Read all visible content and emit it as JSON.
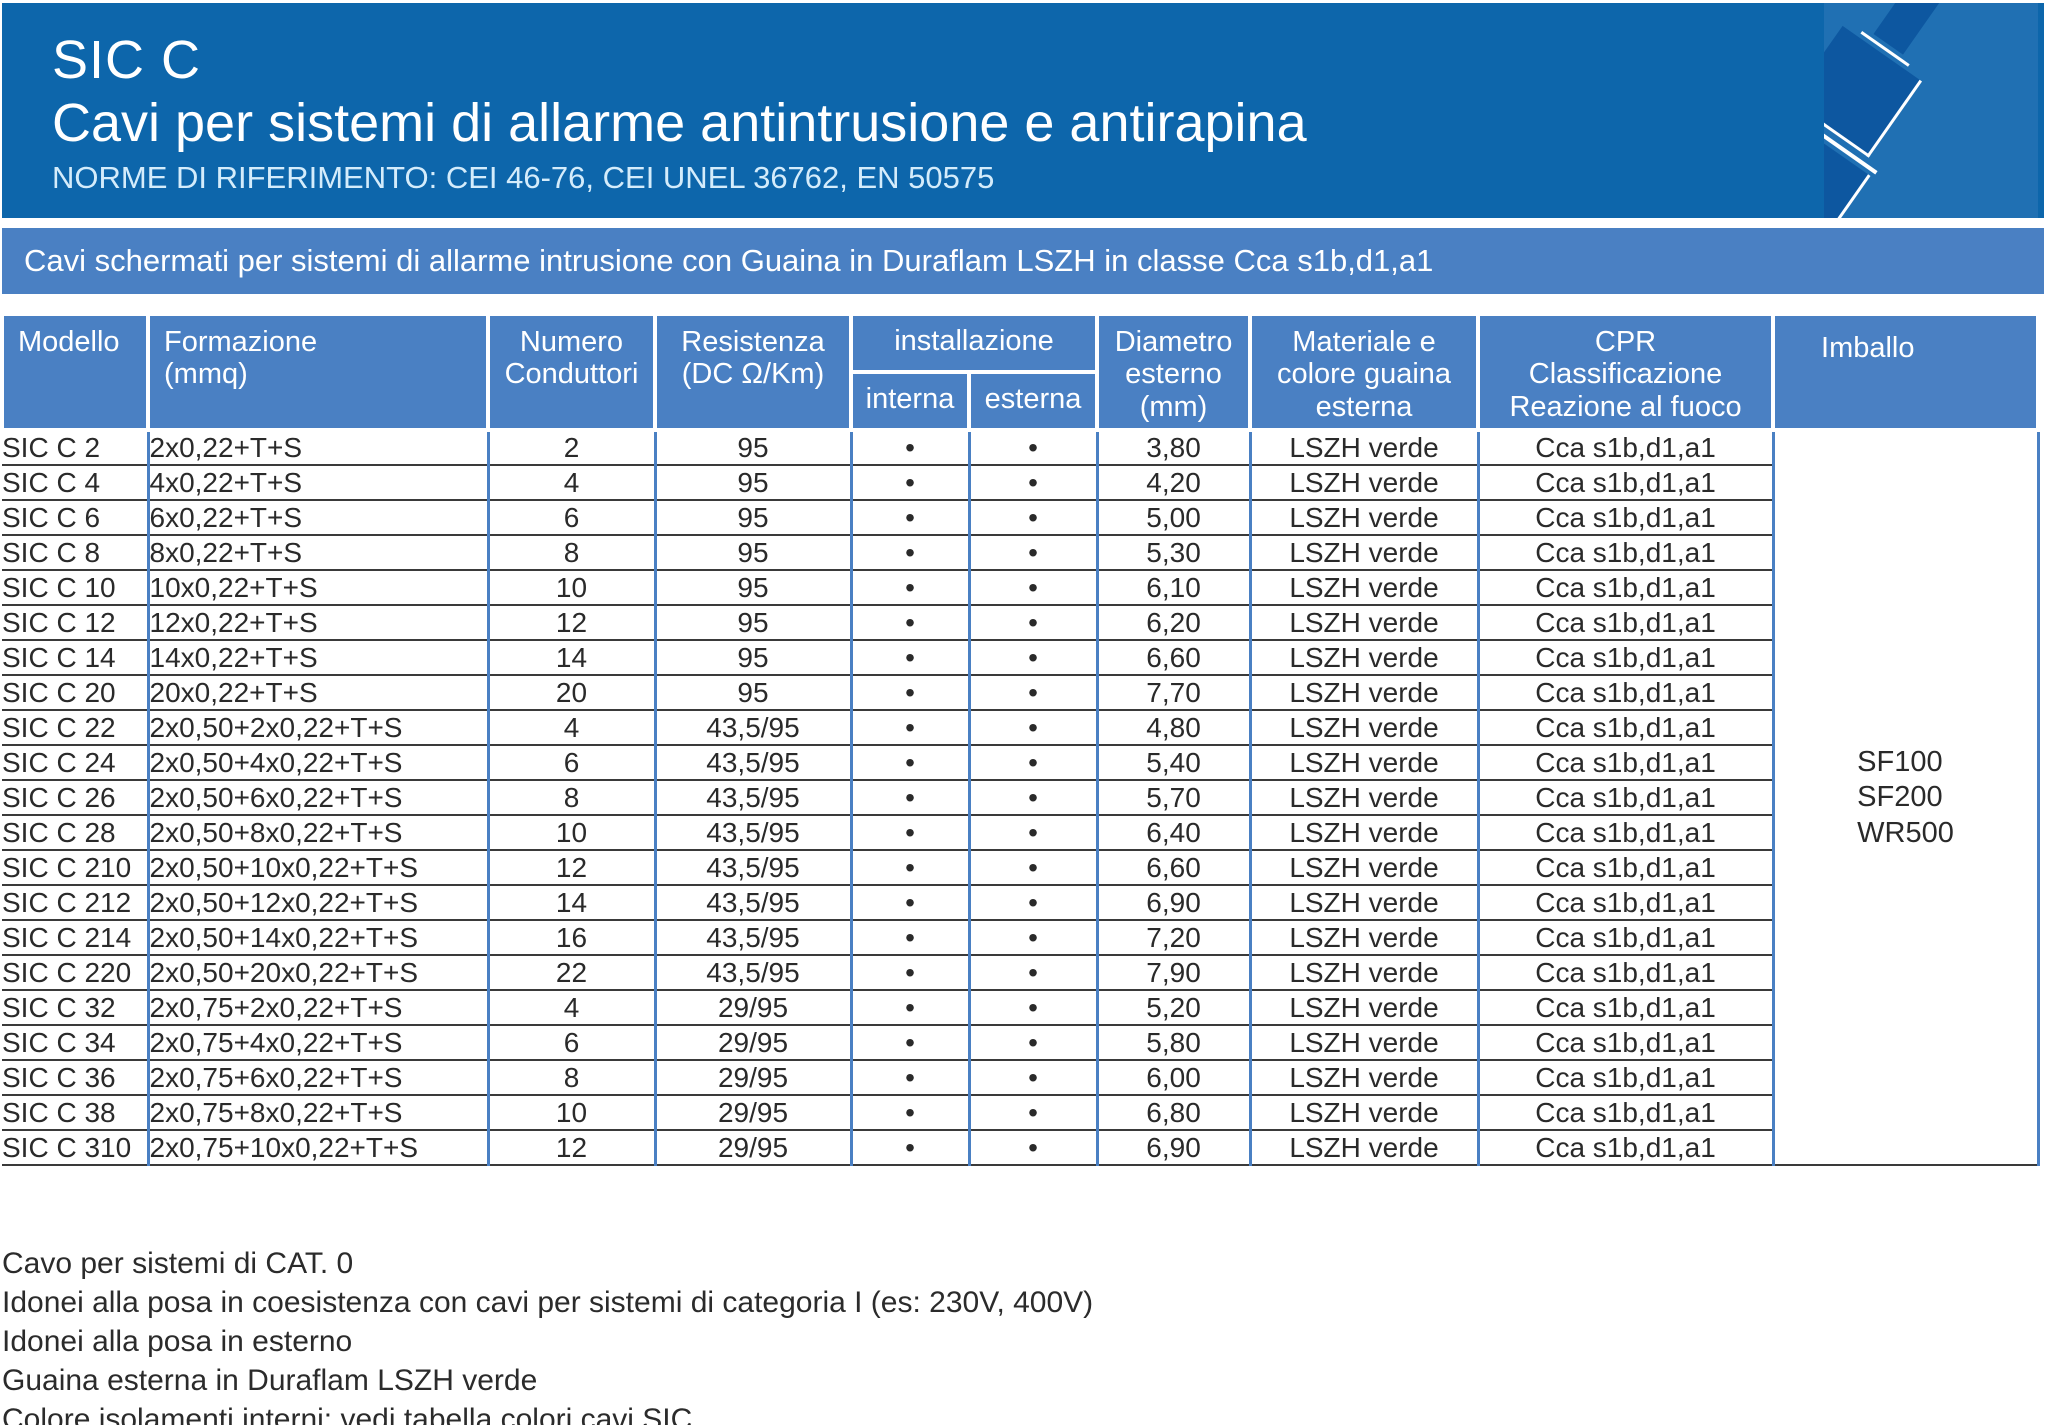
{
  "header": {
    "product_code": "SIC C",
    "title": "Cavi per sistemi di allarme antintrusione e antirapina",
    "norms": "NORME DI RIFERIMENTO: CEI 46-76, CEI UNEL 36762, EN 50575"
  },
  "banner": "Cavi schermati per sistemi di allarme intrusione con Guaina in Duraflam LSZH in classe Cca s1b,d1,a1",
  "table": {
    "headers": {
      "modello": "Modello",
      "formazione": "Formazione\n(mmq)",
      "numero": "Numero\nConduttori",
      "resistenza": "Resistenza\n(DC Ω/Km)",
      "installazione": "installazione",
      "interna": "interna",
      "esterna": "esterna",
      "diametro": "Diametro\nesterno\n(mm)",
      "materiale": "Materiale e\ncolore guaina\nesterna",
      "cpr": "CPR\nClassificazione\nReazione al fuoco",
      "imballo": "Imballo"
    },
    "rows": [
      {
        "model": "SIC C 2",
        "formation": "2x0,22+T+S",
        "conductors": "2",
        "resistance": "95",
        "interna": "•",
        "esterna": "•",
        "diameter": "3,80",
        "material": "LSZH verde",
        "cpr": "Cca s1b,d1,a1"
      },
      {
        "model": "SIC C 4",
        "formation": "4x0,22+T+S",
        "conductors": "4",
        "resistance": "95",
        "interna": "•",
        "esterna": "•",
        "diameter": "4,20",
        "material": "LSZH verde",
        "cpr": "Cca s1b,d1,a1"
      },
      {
        "model": "SIC C 6",
        "formation": "6x0,22+T+S",
        "conductors": "6",
        "resistance": "95",
        "interna": "•",
        "esterna": "•",
        "diameter": "5,00",
        "material": "LSZH verde",
        "cpr": "Cca s1b,d1,a1"
      },
      {
        "model": "SIC C 8",
        "formation": "8x0,22+T+S",
        "conductors": "8",
        "resistance": "95",
        "interna": "•",
        "esterna": "•",
        "diameter": "5,30",
        "material": "LSZH verde",
        "cpr": "Cca s1b,d1,a1"
      },
      {
        "model": "SIC C 10",
        "formation": "10x0,22+T+S",
        "conductors": "10",
        "resistance": "95",
        "interna": "•",
        "esterna": "•",
        "diameter": "6,10",
        "material": "LSZH verde",
        "cpr": "Cca s1b,d1,a1"
      },
      {
        "model": "SIC C 12",
        "formation": "12x0,22+T+S",
        "conductors": "12",
        "resistance": "95",
        "interna": "•",
        "esterna": "•",
        "diameter": "6,20",
        "material": "LSZH verde",
        "cpr": "Cca s1b,d1,a1"
      },
      {
        "model": "SIC C 14",
        "formation": "14x0,22+T+S",
        "conductors": "14",
        "resistance": "95",
        "interna": "•",
        "esterna": "•",
        "diameter": "6,60",
        "material": "LSZH verde",
        "cpr": "Cca s1b,d1,a1"
      },
      {
        "model": "SIC C 20",
        "formation": "20x0,22+T+S",
        "conductors": "20",
        "resistance": "95",
        "interna": "•",
        "esterna": "•",
        "diameter": "7,70",
        "material": "LSZH verde",
        "cpr": "Cca s1b,d1,a1"
      },
      {
        "model": "SIC C 22",
        "formation": "2x0,50+2x0,22+T+S",
        "conductors": "4",
        "resistance": "43,5/95",
        "interna": "•",
        "esterna": "•",
        "diameter": "4,80",
        "material": "LSZH verde",
        "cpr": "Cca s1b,d1,a1"
      },
      {
        "model": "SIC C 24",
        "formation": "2x0,50+4x0,22+T+S",
        "conductors": "6",
        "resistance": "43,5/95",
        "interna": "•",
        "esterna": "•",
        "diameter": "5,40",
        "material": "LSZH verde",
        "cpr": "Cca s1b,d1,a1"
      },
      {
        "model": "SIC C 26",
        "formation": "2x0,50+6x0,22+T+S",
        "conductors": "8",
        "resistance": "43,5/95",
        "interna": "•",
        "esterna": "•",
        "diameter": "5,70",
        "material": "LSZH verde",
        "cpr": "Cca s1b,d1,a1"
      },
      {
        "model": "SIC C 28",
        "formation": "2x0,50+8x0,22+T+S",
        "conductors": "10",
        "resistance": "43,5/95",
        "interna": "•",
        "esterna": "•",
        "diameter": "6,40",
        "material": "LSZH verde",
        "cpr": "Cca s1b,d1,a1"
      },
      {
        "model": "SIC C 210",
        "formation": "2x0,50+10x0,22+T+S",
        "conductors": "12",
        "resistance": "43,5/95",
        "interna": "•",
        "esterna": "•",
        "diameter": "6,60",
        "material": "LSZH verde",
        "cpr": "Cca s1b,d1,a1"
      },
      {
        "model": "SIC C 212",
        "formation": "2x0,50+12x0,22+T+S",
        "conductors": "14",
        "resistance": "43,5/95",
        "interna": "•",
        "esterna": "•",
        "diameter": "6,90",
        "material": "LSZH verde",
        "cpr": "Cca s1b,d1,a1"
      },
      {
        "model": "SIC C 214",
        "formation": "2x0,50+14x0,22+T+S",
        "conductors": "16",
        "resistance": "43,5/95",
        "interna": "•",
        "esterna": "•",
        "diameter": "7,20",
        "material": "LSZH verde",
        "cpr": "Cca s1b,d1,a1"
      },
      {
        "model": "SIC C 220",
        "formation": "2x0,50+20x0,22+T+S",
        "conductors": "22",
        "resistance": "43,5/95",
        "interna": "•",
        "esterna": "•",
        "diameter": "7,90",
        "material": "LSZH verde",
        "cpr": "Cca s1b,d1,a1"
      },
      {
        "model": "SIC C 32",
        "formation": "2x0,75+2x0,22+T+S",
        "conductors": "4",
        "resistance": "29/95",
        "interna": "•",
        "esterna": "•",
        "diameter": "5,20",
        "material": "LSZH verde",
        "cpr": "Cca s1b,d1,a1"
      },
      {
        "model": "SIC C 34",
        "formation": "2x0,75+4x0,22+T+S",
        "conductors": "6",
        "resistance": "29/95",
        "interna": "•",
        "esterna": "•",
        "diameter": "5,80",
        "material": "LSZH verde",
        "cpr": "Cca s1b,d1,a1"
      },
      {
        "model": "SIC C 36",
        "formation": "2x0,75+6x0,22+T+S",
        "conductors": "8",
        "resistance": "29/95",
        "interna": "•",
        "esterna": "•",
        "diameter": "6,00",
        "material": "LSZH verde",
        "cpr": "Cca s1b,d1,a1"
      },
      {
        "model": "SIC C 38",
        "formation": "2x0,75+8x0,22+T+S",
        "conductors": "10",
        "resistance": "29/95",
        "interna": "•",
        "esterna": "•",
        "diameter": "6,80",
        "material": "LSZH verde",
        "cpr": "Cca s1b,d1,a1"
      },
      {
        "model": "SIC C 310",
        "formation": "2x0,75+10x0,22+T+S",
        "conductors": "12",
        "resistance": "29/95",
        "interna": "•",
        "esterna": "•",
        "diameter": "6,90",
        "material": "LSZH verde",
        "cpr": "Cca s1b,d1,a1"
      }
    ],
    "imballo_values": [
      "SF100",
      "SF200",
      "WR500"
    ]
  },
  "notes": [
    "Cavo per sistemi di CAT. 0",
    "Idonei alla posa in coesistenza con cavi per sistemi di categoria I (es: 230V, 400V)",
    "Idonei alla posa in esterno",
    "Guaina esterna in Duraflam LSZH verde",
    "Colore isolamenti interni: vedi tabella colori cavi SIC"
  ],
  "colors": {
    "dark_blue": "#0d66ab",
    "band_blue": "#4a80c3",
    "light_blue": "#2070b3",
    "segment_blue": "#0d57a0",
    "row_line": "#3a3a3a"
  }
}
